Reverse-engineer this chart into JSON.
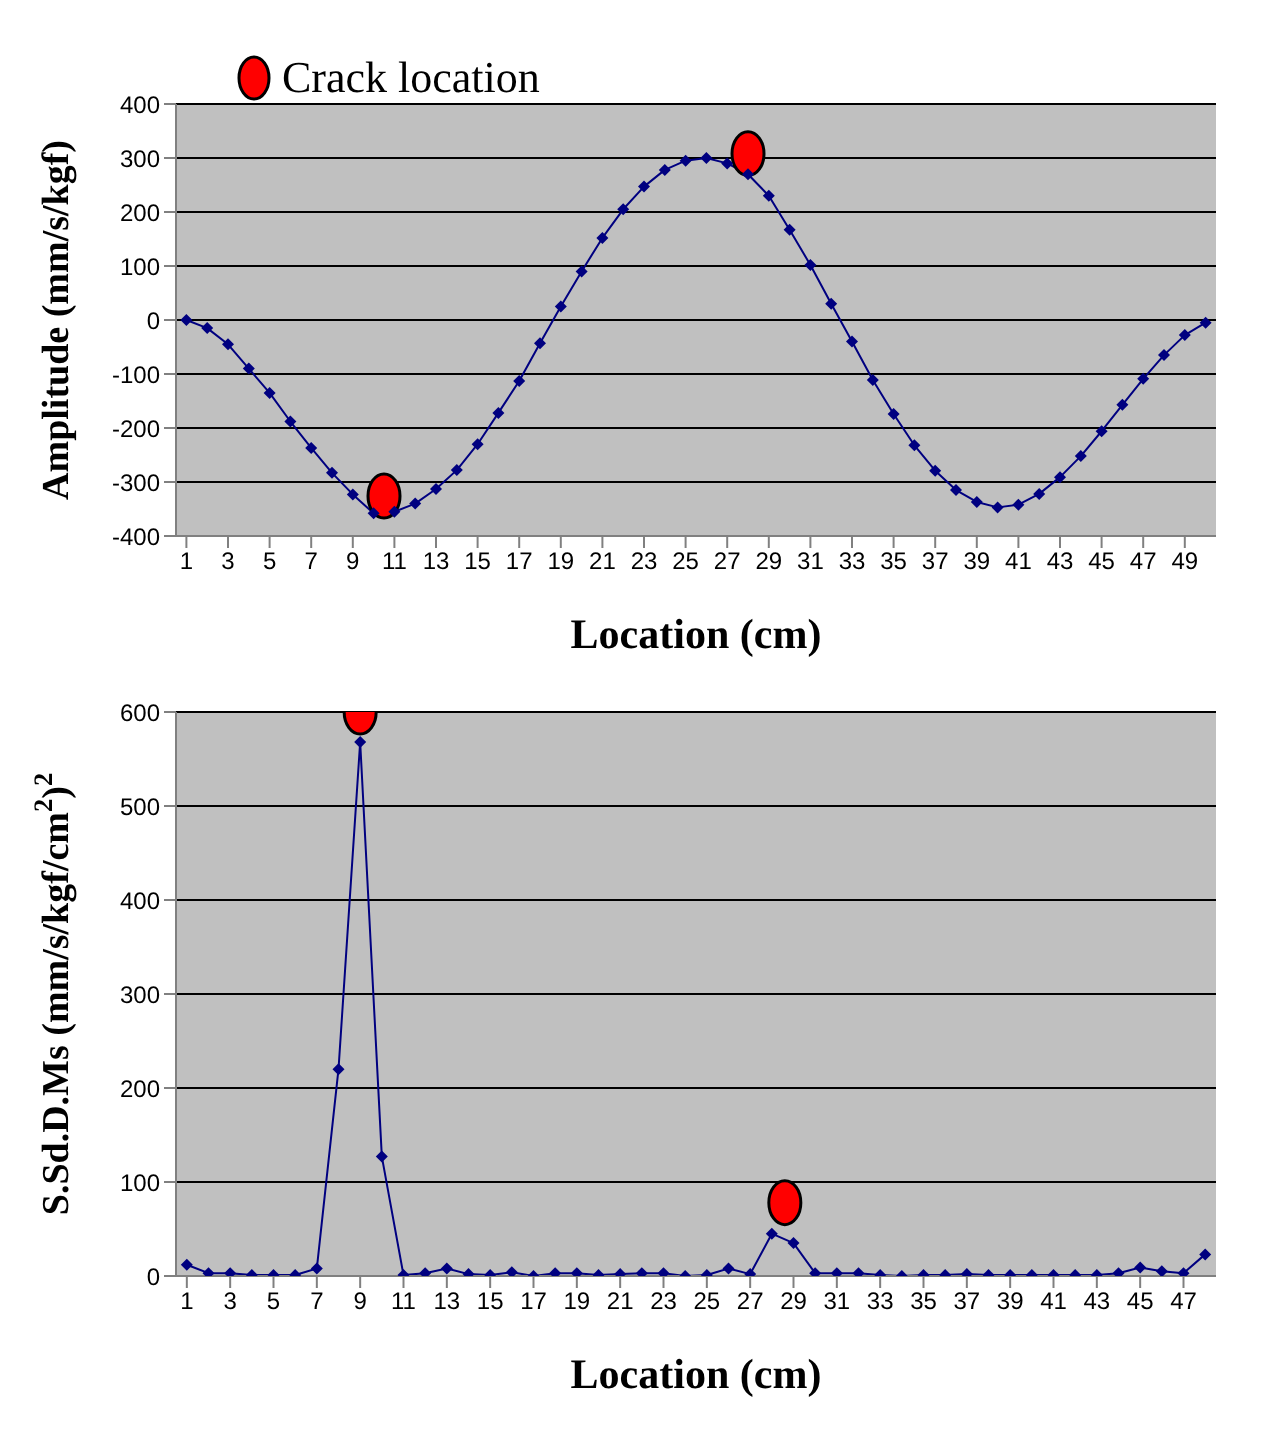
{
  "chart_data": [
    {
      "type": "line",
      "xlabel": "Location (cm)",
      "ylabel": "Amplitude (mm/s/kgf)",
      "xlim": [
        0.5,
        50.5
      ],
      "xticks": [
        1,
        3,
        5,
        7,
        9,
        11,
        13,
        15,
        17,
        19,
        21,
        23,
        25,
        27,
        29,
        31,
        33,
        35,
        37,
        39,
        41,
        43,
        45,
        47,
        49
      ],
      "ylim": [
        -400,
        400
      ],
      "yticks": [
        -400,
        -300,
        -200,
        -100,
        0,
        100,
        200,
        300,
        400
      ],
      "grid": "y",
      "legend": "top left",
      "marker": "diamond",
      "line_style": "solid",
      "x": [
        1,
        2,
        3,
        4,
        5,
        6,
        7,
        8,
        9,
        10,
        11,
        12,
        13,
        14,
        15,
        16,
        17,
        18,
        19,
        20,
        21,
        22,
        23,
        24,
        25,
        26,
        27,
        28,
        29,
        30,
        31,
        32,
        33,
        34,
        35,
        36,
        37,
        38,
        39,
        40,
        41,
        42,
        43,
        44,
        45,
        46,
        47,
        48,
        49,
        50
      ],
      "series": [
        {
          "color": "#000080",
          "values": [
            0,
            -15,
            -45,
            -90,
            -135,
            -188,
            -237,
            -283,
            -323,
            -358,
            -355,
            -340,
            -313,
            -278,
            -230,
            -172,
            -113,
            -43,
            25,
            90,
            152,
            205,
            247,
            278,
            295,
            300,
            290,
            270,
            230,
            167,
            102,
            30,
            -40,
            -111,
            -174,
            -232,
            -279,
            -315,
            -337,
            -347,
            -342,
            -322,
            -291,
            -252,
            -206,
            -157,
            -109,
            -65,
            -28,
            -5
          ]
        },
        {
          "type": "scatter",
          "name": "Crack location",
          "color": "#ff0000",
          "marker": "circle",
          "x": [
            10.5,
            28
          ],
          "values": [
            -326,
            308
          ]
        }
      ]
    },
    {
      "type": "line",
      "xlabel": "Location (cm)",
      "ylabel": "S.Sd.D.Ms (mm/s/kgf/cm$^{2}$)$^{2}$",
      "xlim": [
        0.5,
        48.5
      ],
      "xticks": [
        1,
        3,
        5,
        7,
        9,
        11,
        13,
        15,
        17,
        19,
        21,
        23,
        25,
        27,
        29,
        31,
        33,
        35,
        37,
        39,
        41,
        43,
        45,
        47
      ],
      "ylim": [
        0,
        600
      ],
      "yticks": [
        0,
        100,
        200,
        300,
        400,
        500,
        600
      ],
      "grid": "y",
      "marker": "diamond",
      "line_style": "solid",
      "x": [
        1,
        2,
        3,
        4,
        5,
        6,
        7,
        8,
        9,
        10,
        11,
        12,
        13,
        14,
        15,
        16,
        17,
        18,
        19,
        20,
        21,
        22,
        23,
        24,
        25,
        26,
        27,
        28,
        29,
        30,
        31,
        32,
        33,
        34,
        35,
        36,
        37,
        38,
        39,
        40,
        41,
        42,
        43,
        44,
        45,
        46,
        47,
        48
      ],
      "series": [
        {
          "color": "#000080",
          "values": [
            12,
            3,
            3,
            1,
            1,
            1,
            8,
            220,
            568,
            127,
            1,
            3,
            8,
            2,
            1,
            4,
            0,
            3,
            3,
            1,
            2,
            3,
            3,
            0,
            1,
            8,
            2,
            45,
            35,
            3,
            3,
            3,
            1,
            0,
            1,
            1,
            2,
            1,
            1,
            1,
            1,
            1,
            1,
            3,
            9,
            5,
            3,
            23
          ]
        },
        {
          "type": "scatter",
          "color": "#ff0000",
          "marker": "circle",
          "x": [
            9,
            28.6
          ],
          "values": [
            600,
            78
          ]
        }
      ]
    }
  ]
}
